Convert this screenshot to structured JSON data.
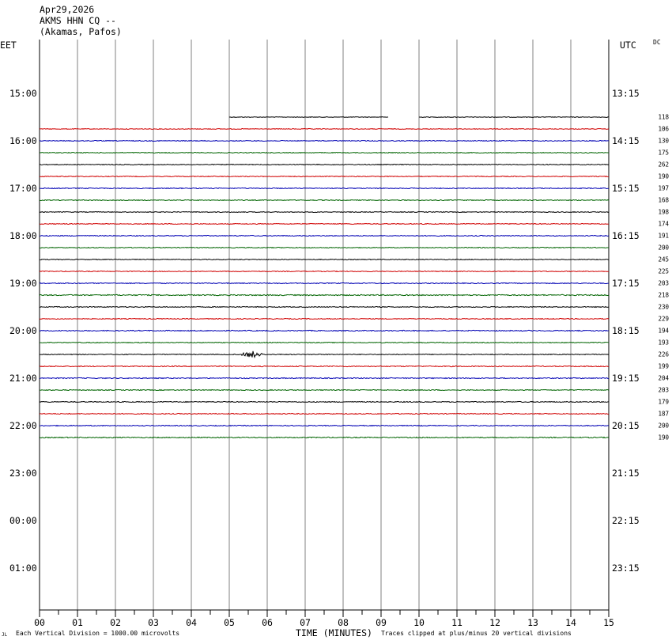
{
  "header": {
    "date": "Apr29,2026",
    "station": "AKMS HHN CQ --",
    "location": "(Akamas, Pafos)"
  },
  "left_timezone": "EET",
  "right_timezone": "UTC",
  "dc_label": "DC",
  "footer": {
    "scale_note": "Each Vertical Division = 1000.00 microvolts",
    "xaxis_title": "TIME (MINUTES)",
    "clip_note": "Traces clipped at plus/minus 20 vertical divisions",
    "corner_mark": "JL"
  },
  "colors": {
    "cycle": [
      "#0000b4",
      "#006400",
      "#000000",
      "#d00000"
    ],
    "grid": "#808080",
    "frame": "#000000"
  },
  "chart_data": {
    "type": "line",
    "title": "",
    "xlabel": "TIME (MINUTES)",
    "xlim": [
      0,
      15
    ],
    "x_ticks": [
      "00",
      "01",
      "02",
      "03",
      "04",
      "05",
      "06",
      "07",
      "08",
      "09",
      "10",
      "11",
      "12",
      "13",
      "14",
      "15"
    ],
    "left_hour_labels": [
      "15:00",
      "16:00",
      "17:00",
      "18:00",
      "19:00",
      "20:00",
      "21:00",
      "22:00",
      "23:00",
      "00:00",
      "01:00"
    ],
    "right_hour_labels": [
      "13:15",
      "14:15",
      "15:15",
      "16:15",
      "17:15",
      "18:15",
      "19:15",
      "20:15",
      "21:15",
      "22:15",
      "23:15"
    ],
    "rows_per_hour": 4,
    "first_trace_row": 2,
    "dc_offsets": [
      118,
      106,
      130,
      175,
      262,
      190,
      197,
      168,
      198,
      174,
      191,
      200,
      245,
      225,
      203,
      218,
      230,
      229,
      194,
      193,
      226,
      199,
      204,
      203,
      179,
      187,
      200,
      190
    ],
    "traces": [
      {
        "segments": [
          [
            5.0,
            9.2
          ],
          [
            10.0,
            15.0
          ]
        ],
        "noise": 0.4
      },
      {
        "segments": [
          [
            0,
            15
          ]
        ],
        "noise": 0.45
      },
      {
        "segments": [
          [
            0,
            15
          ]
        ],
        "noise": 0.5
      },
      {
        "segments": [
          [
            0,
            15
          ]
        ],
        "noise": 0.5
      },
      {
        "segments": [
          [
            0,
            15
          ]
        ],
        "noise": 0.5
      },
      {
        "segments": [
          [
            0,
            15
          ]
        ],
        "noise": 0.5
      },
      {
        "segments": [
          [
            0,
            15
          ]
        ],
        "noise": 0.55
      },
      {
        "segments": [
          [
            0,
            15
          ]
        ],
        "noise": 0.5
      },
      {
        "segments": [
          [
            0,
            15
          ]
        ],
        "noise": 0.5
      },
      {
        "segments": [
          [
            0,
            15
          ]
        ],
        "noise": 0.5
      },
      {
        "segments": [
          [
            0,
            15
          ]
        ],
        "noise": 0.5
      },
      {
        "segments": [
          [
            0,
            15
          ]
        ],
        "noise": 0.5
      },
      {
        "segments": [
          [
            0,
            15
          ]
        ],
        "noise": 0.5
      },
      {
        "segments": [
          [
            0,
            15
          ]
        ],
        "noise": 0.5
      },
      {
        "segments": [
          [
            0,
            15
          ]
        ],
        "noise": 0.55
      },
      {
        "segments": [
          [
            0,
            15
          ]
        ],
        "noise": 0.7
      },
      {
        "segments": [
          [
            0,
            15
          ]
        ],
        "noise": 0.55
      },
      {
        "segments": [
          [
            0,
            15
          ]
        ],
        "noise": 0.5
      },
      {
        "segments": [
          [
            0,
            15
          ]
        ],
        "noise": 0.6
      },
      {
        "segments": [
          [
            0,
            15
          ]
        ],
        "noise": 0.5
      },
      {
        "segments": [
          [
            0,
            15
          ]
        ],
        "noise": 0.5,
        "event": {
          "at": 5.6,
          "width": 0.35,
          "amp": 5
        }
      },
      {
        "segments": [
          [
            0,
            15
          ]
        ],
        "noise": 0.6
      },
      {
        "segments": [
          [
            0,
            15
          ]
        ],
        "noise": 0.6
      },
      {
        "segments": [
          [
            0,
            15
          ]
        ],
        "noise": 0.55
      },
      {
        "segments": [
          [
            0,
            15
          ]
        ],
        "noise": 0.55
      },
      {
        "segments": [
          [
            0,
            15
          ]
        ],
        "noise": 0.55
      },
      {
        "segments": [
          [
            0,
            15
          ]
        ],
        "noise": 0.55
      },
      {
        "segments": [
          [
            0,
            15
          ]
        ],
        "noise": 0.6
      }
    ]
  }
}
